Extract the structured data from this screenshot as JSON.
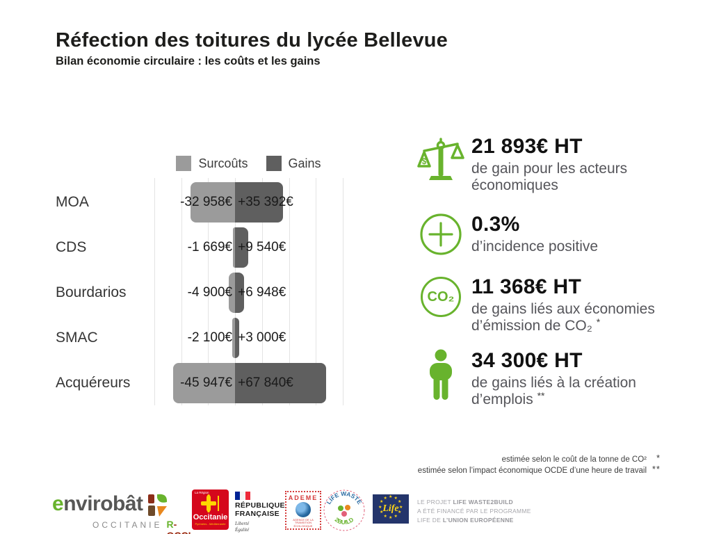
{
  "colors": {
    "accent_green": "#68b32d",
    "surcout_gray": "#9b9b9b",
    "gain_gray": "#5f5f5f",
    "eu_blue": "#24356b"
  },
  "header": {
    "title": "Réfection des toitures du lycée Bellevue",
    "subtitle": "Bilan économie circulaire : les coûts et les gains"
  },
  "chart_data": {
    "type": "bar",
    "orientation": "horizontal-diverging",
    "title": "",
    "categories": [
      "MOA",
      "CDS",
      "Bourdarios",
      "SMAC",
      "Acquéreurs"
    ],
    "series": [
      {
        "name": "Surcoûts",
        "values": [
          -32958,
          -1669,
          -4900,
          -2100,
          -45947
        ],
        "labels": [
          "-32 958€",
          "-1 669€",
          "-4 900€",
          "-2 100€",
          "-45 947€"
        ]
      },
      {
        "name": "Gains",
        "values": [
          35392,
          9540,
          6948,
          3000,
          67840
        ],
        "labels": [
          "+35 392€",
          "+9 540€",
          "+6 948€",
          "+3 000€",
          "+67 840€"
        ]
      }
    ],
    "legend": [
      {
        "label": "Surcoûts",
        "color": "#9b9b9b"
      },
      {
        "label": "Gains",
        "color": "#5f5f5f"
      }
    ],
    "xlim": [
      -60000,
      80000
    ],
    "gridline_step": 20000,
    "grid": true,
    "legend_position": "top",
    "unit": "€"
  },
  "stats": [
    {
      "icon": "balance-scale-icon",
      "value": "21 893€ HT",
      "description": "de gain pour les acteurs économiques",
      "marker": ""
    },
    {
      "icon": "plus-circle-icon",
      "value": "0.3%",
      "description": "d’incidence positive",
      "marker": ""
    },
    {
      "icon": "co2-icon",
      "icon_label": "CO₂",
      "value": "11 368€ HT",
      "description": "de gains liés aux économies d’émission de CO₂",
      "marker": "*"
    },
    {
      "icon": "person-icon",
      "value": "34 300€ HT",
      "description": "de gains liés à la création d’emplois",
      "marker": "**"
    }
  ],
  "footnotes": [
    {
      "text": "estimée selon le coût de la tonne de CO²",
      "marker": "*"
    },
    {
      "text": "estimée selon l’impact économique OCDE d’une heure de travail",
      "marker": "**"
    }
  ],
  "footer": {
    "envirobat": {
      "first_letter": "e",
      "rest": "nvirobât",
      "region": "OCCITANIE",
      "rocci_r": "R",
      "rocci_rest": "-OCCI"
    },
    "occitanie": {
      "small": "La Région",
      "name": "Occitanie",
      "sub": "Pyrénées - Méditerranée"
    },
    "republique": {
      "line1": "RÉPUBLIQUE",
      "line2": "FRANÇAISE",
      "motto1": "Liberté",
      "motto2": "Égalité",
      "motto3": "Fraternité"
    },
    "ademe": {
      "name": "ADEME",
      "sub": "AGENCE DE LA TRANSITION ÉCOLOGIQUE"
    },
    "lifewaste": {
      "arc_top": "LIFE WASTE",
      "arc_bottom": "2BUILD"
    },
    "eu_life": {
      "script": "Life"
    },
    "funding": {
      "l1_normal": "LE PROJET ",
      "l1_bold": "LIFE WASTE2BUILD",
      "l2": "A ÉTÉ FINANCÉ PAR LE PROGRAMME",
      "l3_normal": "LIFE DE ",
      "l3_bold": "L’UNION EUROPÉENNE"
    }
  }
}
